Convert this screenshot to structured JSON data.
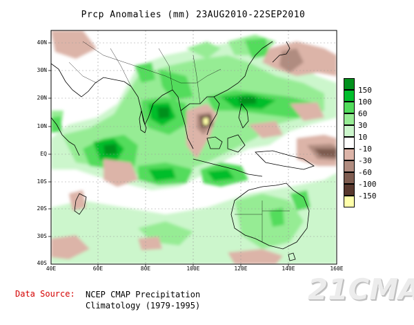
{
  "title": "Prcp Anomalies (mm) 23AUG2010-22SEP2010",
  "y_ticks": [
    "40N",
    "30N",
    "20N",
    "10N",
    "EQ",
    "10S",
    "20S",
    "30S",
    "40S"
  ],
  "x_ticks": [
    "40E",
    "60E",
    "80E",
    "100E",
    "120E",
    "140E",
    "160E"
  ],
  "legend": [
    {
      "label": "150",
      "color": "#00901c"
    },
    {
      "label": "100",
      "color": "#00be2c"
    },
    {
      "label": "60",
      "color": "#52dc5c"
    },
    {
      "label": "30",
      "color": "#96ec94"
    },
    {
      "label": "10",
      "color": "#ccf6cc"
    },
    {
      "label": "-10",
      "color": "#ffffff"
    },
    {
      "label": "-30",
      "color": "#dcb4a8"
    },
    {
      "label": "-60",
      "color": "#b08c80"
    },
    {
      "label": "-100",
      "color": "#7e5c50"
    },
    {
      "label": "-150",
      "color": "#58382e"
    },
    {
      "label": "",
      "color": "#ffffaa"
    }
  ],
  "source": {
    "label": "Data Source:",
    "line1": "NCEP CMAP Precipitation",
    "line2": "Climatology (1979-1995)"
  },
  "watermark": "21CMA"
}
